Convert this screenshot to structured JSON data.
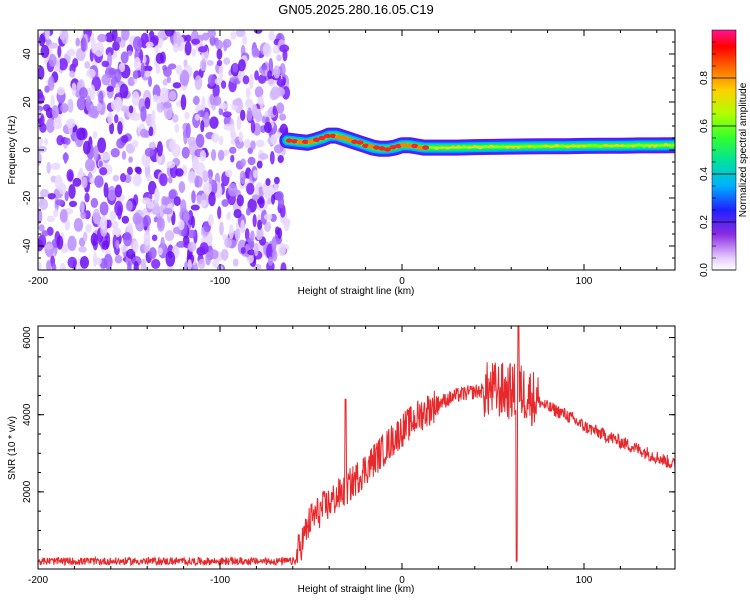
{
  "figure_title": "GN05.2025.280.16.05.C19",
  "colors": {
    "scatter": "#7a1fff",
    "snr_line": "#e8282b",
    "axis": "#000000"
  },
  "chart_data": [
    {
      "type": "heatmap",
      "title": "GN05.2025.280.16.05.C19",
      "xlabel": "Height of straight line (km)",
      "ylabel": "Frequency (Hz)",
      "xlim": [
        -200,
        150
      ],
      "ylim": [
        -50,
        50
      ],
      "x_ticks": [
        -200,
        -100,
        0,
        100
      ],
      "y_ticks": [
        -40,
        -20,
        0,
        20,
        40
      ],
      "noise_region_x": [
        -200,
        -63
      ],
      "signal_track": {
        "x": [
          -63,
          -58,
          -52,
          -47,
          -43,
          -40,
          -36,
          -32,
          -28,
          -24,
          -20,
          -16,
          -12,
          -8,
          -4,
          0,
          4,
          8,
          12,
          20,
          30,
          40,
          50,
          60,
          70,
          80,
          90,
          100,
          110,
          120,
          130,
          140,
          150
        ],
        "freq": [
          4,
          3.5,
          3,
          4,
          5,
          6,
          6,
          5,
          4,
          3,
          2,
          1,
          0.5,
          0.5,
          1,
          2,
          2,
          1.5,
          1,
          1,
          1,
          1.2,
          1.3,
          1.4,
          1.5,
          1.6,
          1.6,
          1.7,
          1.8,
          1.8,
          1.9,
          1.9,
          2
        ]
      },
      "colorbar": {
        "label": "Normalized spectral amplitude",
        "ticks": [
          0.0,
          0.2,
          0.4,
          0.6,
          0.8
        ],
        "tick_labels": [
          "0.0",
          "0.2",
          "0.4",
          "0.6",
          "0.8"
        ],
        "range": [
          0,
          1
        ]
      }
    },
    {
      "type": "line",
      "xlabel": "Height of straight line (km)",
      "ylabel": "SNR (10 * v/v)",
      "xlim": [
        -200,
        150
      ],
      "ylim": [
        0,
        6300
      ],
      "x_ticks": [
        -200,
        -100,
        0,
        100
      ],
      "y_ticks": [
        2000,
        4000,
        6000
      ],
      "envelope": {
        "x": [
          -200,
          -60,
          -55,
          -50,
          -40,
          -30,
          -20,
          -10,
          0,
          10,
          20,
          30,
          40,
          50,
          60,
          65,
          70,
          80,
          90,
          100,
          110,
          120,
          130,
          140,
          150
        ],
        "y": [
          120,
          120,
          700,
          1300,
          1700,
          2100,
          2600,
          3100,
          3600,
          4000,
          4300,
          4500,
          4600,
          4650,
          4600,
          4600,
          4500,
          4200,
          4000,
          3700,
          3500,
          3300,
          3100,
          2900,
          2700
        ]
      },
      "series_name": "SNR"
    }
  ]
}
